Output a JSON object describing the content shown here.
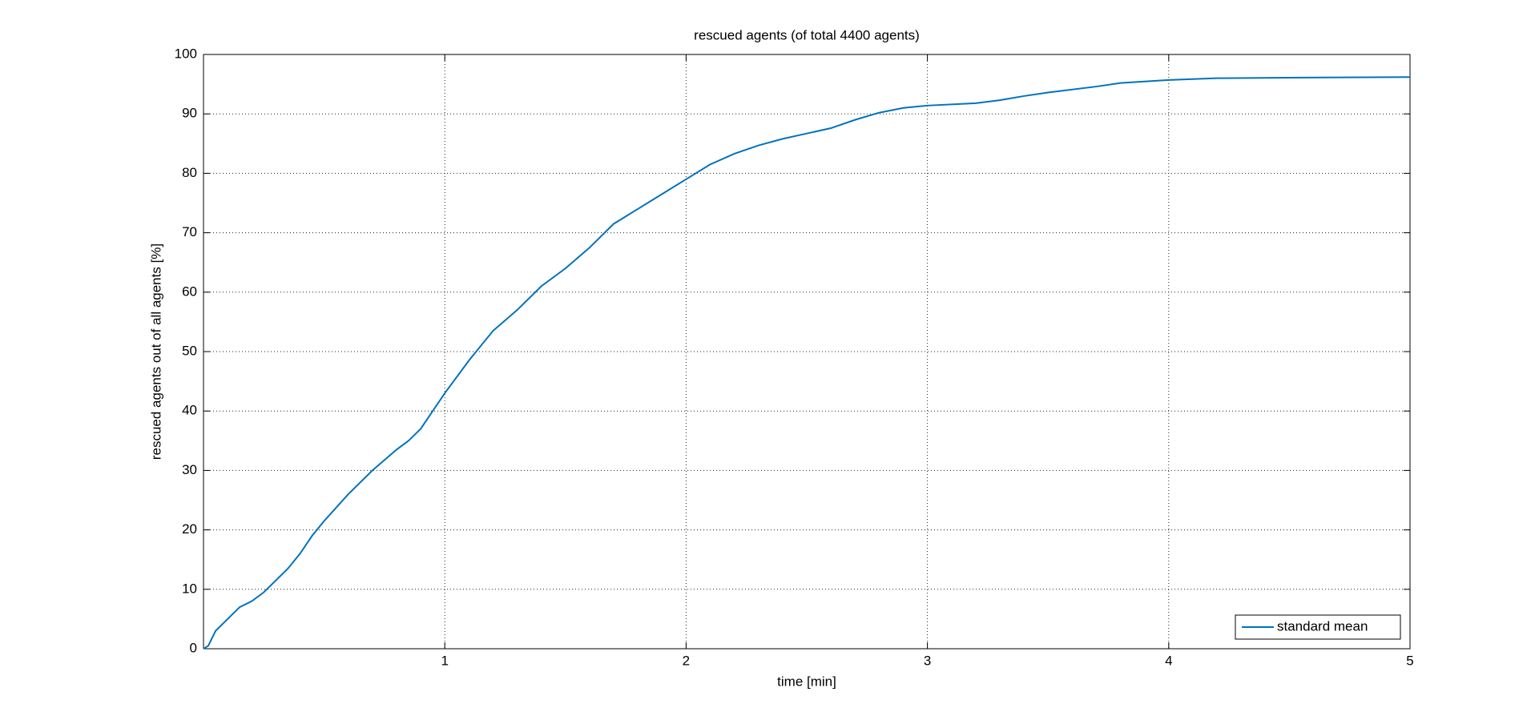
{
  "chart_data": {
    "type": "line",
    "title": "rescued agents (of total 4400 agents)",
    "x_label": "time [min]",
    "y_label": "rescued agents out of all agents [%]",
    "x": [
      0,
      0.02,
      0.05,
      0.1,
      0.15,
      0.2,
      0.25,
      0.3,
      0.35,
      0.4,
      0.45,
      0.5,
      0.6,
      0.7,
      0.8,
      0.85,
      0.9,
      0.95,
      1.0,
      1.1,
      1.2,
      1.3,
      1.4,
      1.5,
      1.6,
      1.7,
      1.8,
      1.9,
      2.0,
      2.1,
      2.2,
      2.3,
      2.4,
      2.5,
      2.6,
      2.7,
      2.8,
      2.9,
      3.0,
      3.2,
      3.3,
      3.4,
      3.5,
      3.7,
      3.8,
      4.0,
      4.2,
      4.5,
      5.0
    ],
    "series": [
      {
        "name": "standard mean",
        "color": "#0072bd",
        "values": [
          0,
          0.5,
          3,
          5,
          7,
          8,
          9.5,
          11.5,
          13.5,
          16,
          19,
          21.5,
          26,
          30,
          33.5,
          35,
          37,
          40,
          43,
          48.5,
          53.5,
          57,
          61,
          64,
          67.5,
          71.5,
          74,
          76.5,
          79,
          81.5,
          83.3,
          84.7,
          85.8,
          86.7,
          87.6,
          89,
          90.2,
          91,
          91.4,
          91.8,
          92.3,
          93,
          93.6,
          94.6,
          95.2,
          95.7,
          96,
          96.1,
          96.2
        ]
      }
    ],
    "xlim": [
      0,
      5
    ],
    "xticks": [
      1,
      2,
      3,
      4,
      5
    ],
    "ylim": [
      0,
      100
    ],
    "yticks": [
      0,
      10,
      20,
      30,
      40,
      50,
      60,
      70,
      80,
      90,
      100
    ],
    "grid": true,
    "legend": "lower right"
  }
}
